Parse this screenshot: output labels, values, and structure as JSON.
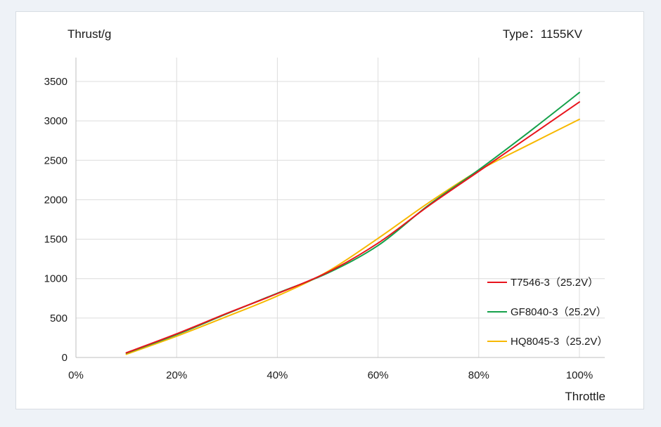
{
  "chart_data": {
    "type": "line",
    "ylabel": "Thrust/g",
    "xlabel": "Throttle",
    "annotation": "Type：1155KV",
    "x_ticks": [
      "0%",
      "20%",
      "40%",
      "60%",
      "80%",
      "100%"
    ],
    "y_ticks": [
      "0",
      "500",
      "1000",
      "1500",
      "2000",
      "2500",
      "3000",
      "3500"
    ],
    "xlim": [
      0,
      105
    ],
    "ylim": [
      0,
      3500
    ],
    "grid": true,
    "legend_position": "bottom-right",
    "x": [
      10,
      20,
      30,
      40,
      50,
      60,
      70,
      80,
      90,
      100
    ],
    "series": [
      {
        "name": "T7546-3（25.2V）",
        "color": "#e8141c",
        "values": [
          60,
          300,
          560,
          810,
          1080,
          1450,
          1920,
          2360,
          2800,
          3240
        ]
      },
      {
        "name": "GF8040-3（25.2V）",
        "color": "#15a14a",
        "values": [
          55,
          290,
          555,
          815,
          1070,
          1420,
          1930,
          2380,
          2860,
          3360
        ]
      },
      {
        "name": "HQ8045-3（25.2V）",
        "color": "#f7b800",
        "values": [
          40,
          270,
          520,
          780,
          1090,
          1510,
          1960,
          2370,
          2700,
          3020
        ]
      }
    ]
  }
}
